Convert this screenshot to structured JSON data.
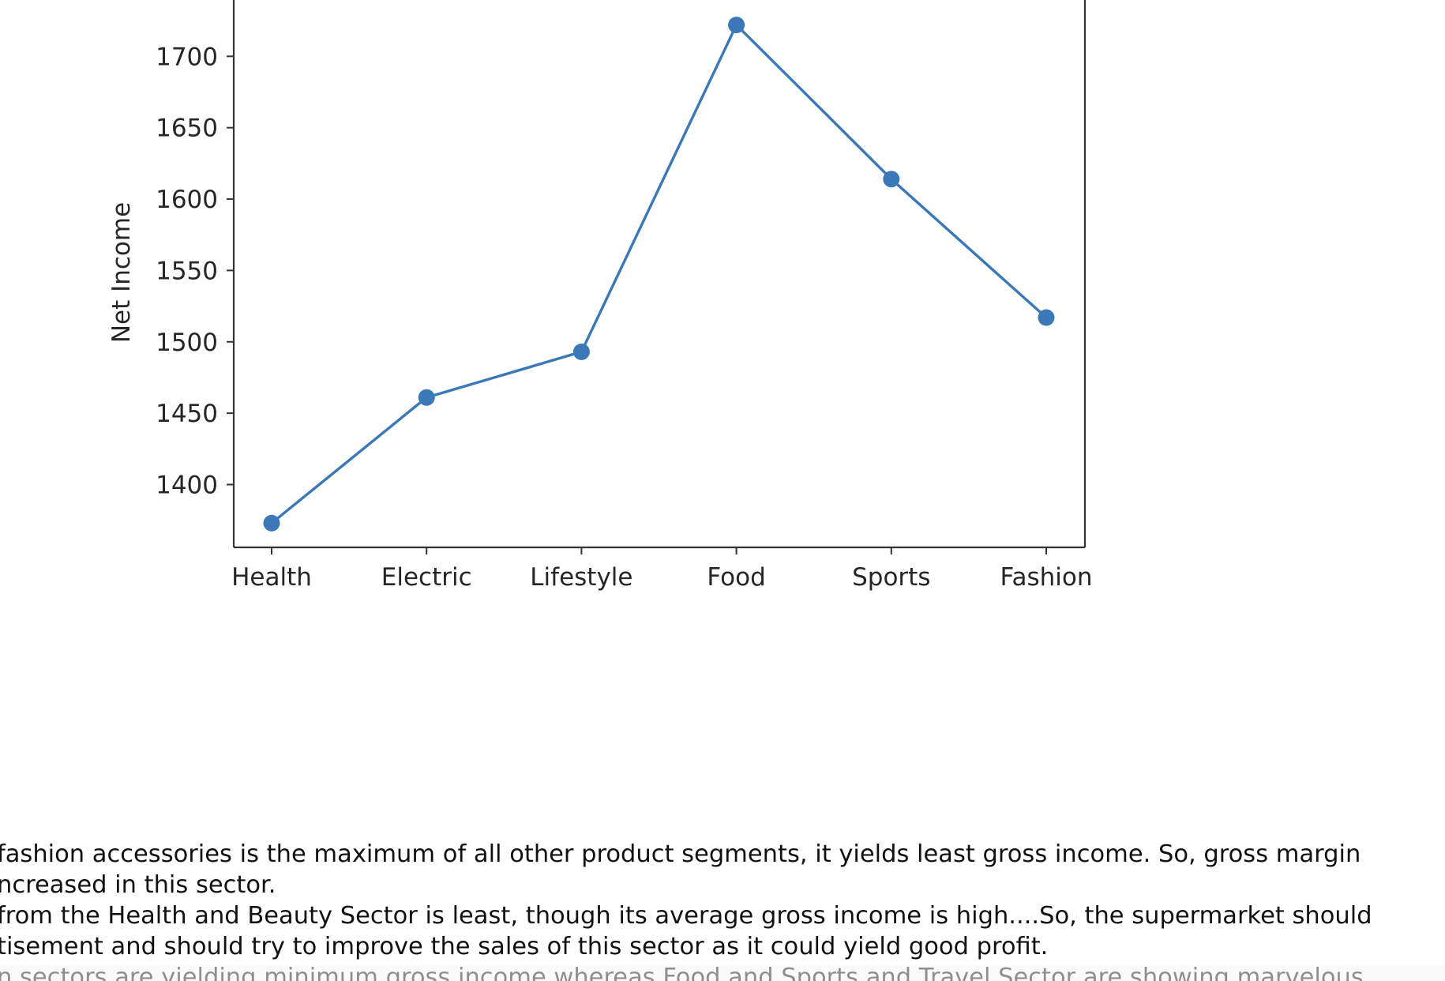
{
  "chart_data": {
    "type": "line",
    "title": "",
    "xlabel": "",
    "ylabel": "Net Income",
    "categories": [
      "Health",
      "Electric",
      "Lifestyle",
      "Food",
      "Sports",
      "Fashion"
    ],
    "series": [
      {
        "name": "Net Income",
        "values": [
          1373,
          1461,
          1493,
          1722,
          1614,
          1517
        ]
      }
    ],
    "yticks": [
      1400,
      1450,
      1500,
      1550,
      1600,
      1650,
      1700
    ],
    "ylim": [
      1356,
      1745
    ],
    "grid": false,
    "color": "#3a78b8"
  },
  "notes": [
    {
      "lines": [
        "fashion accessories is the maximum of all other product segments, it yields least gross income. So, gross margin",
        "ncreased in this sector."
      ]
    },
    {
      "lines": [
        "from the Health and Beauty Sector is least, though its average gross income is high....So, the supermarket should",
        "tisement and should try to improve the sales of this sector as it could yield good profit."
      ]
    },
    {
      "lines": [
        "n sectors are yielding minimum gross income whereas Food and Sports and Travel Sector are showing marvelous"
      ]
    }
  ]
}
